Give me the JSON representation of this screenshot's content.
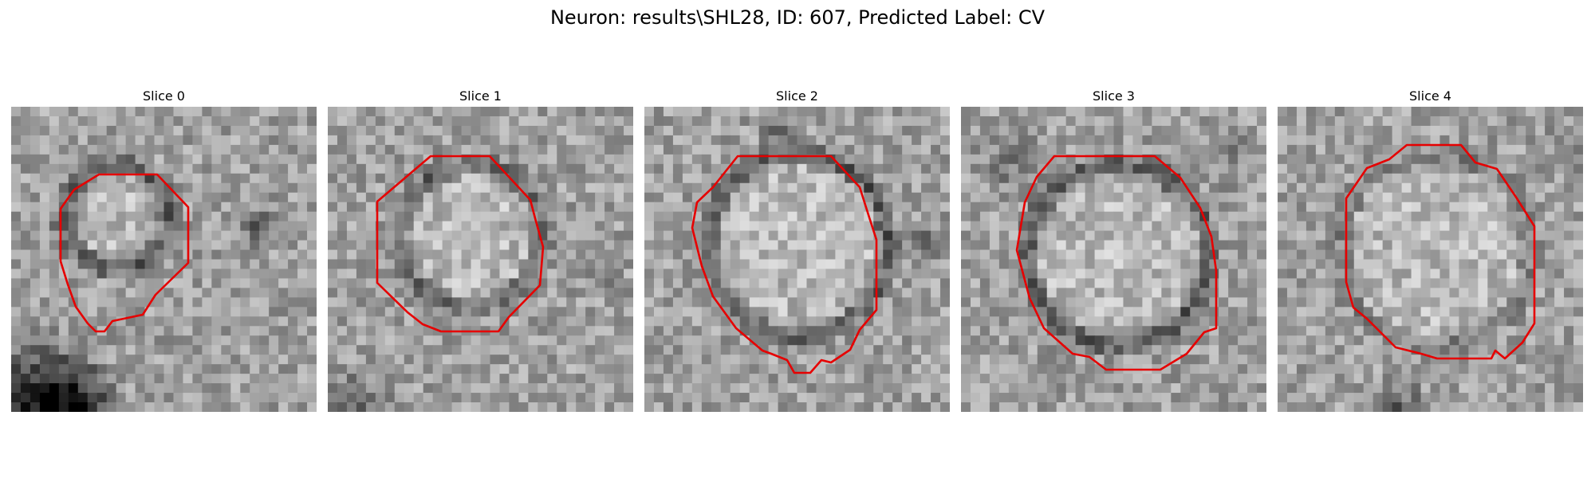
{
  "figure": {
    "title": "Neuron: results\\SHL28, ID: 607, Predicted Label: CV"
  },
  "slices": [
    {
      "title": "Slice 0"
    },
    {
      "title": "Slice 1"
    },
    {
      "title": "Slice 2"
    },
    {
      "title": "Slice 3"
    },
    {
      "title": "Slice 4"
    }
  ],
  "style": {
    "contour_color": "#e60000",
    "colormap": "gray"
  }
}
